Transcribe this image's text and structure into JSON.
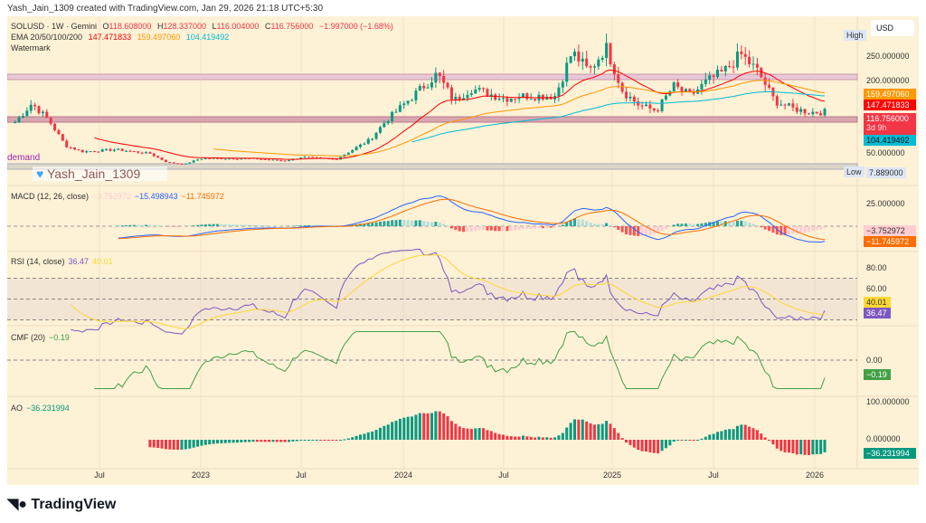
{
  "credit": "Yash_Jain_1309 created with TradingView.com, Jan 29, 2026 21:18 UTC+5:30",
  "legend": {
    "symbol": "SOLUSD · 1W · Gemini",
    "o_label": "O",
    "o": "118.608000",
    "h_label": "H",
    "h": "128.337000",
    "l_label": "L",
    "l": "116.004000",
    "c_label": "C",
    "c": "116.756000",
    "change": "−1.997000 (−1.68%)",
    "ema_label": "EMA 20/50/100/200",
    "ema20": "147.471833",
    "ema50": "159.497060",
    "ema100": "104.419492",
    "watermark": "Watermark"
  },
  "annotations": {
    "demand": "demand",
    "watermark_text": "Yash_Jain_1309"
  },
  "axis": {
    "currency": "USD",
    "high": "High",
    "low": "Low",
    "low_value": "7.889000",
    "price_ticks": [
      "250.000000",
      "200.000000",
      "50.000000"
    ],
    "price_tags": {
      "ema50": "159.497060",
      "ema20": "147.471833",
      "close": "116.756000",
      "countdown": "3d 9h",
      "ema100": "104.419492"
    }
  },
  "macd": {
    "label": "MACD (12, 26, close)",
    "hist": "−3.752972",
    "macd": "−15.498943",
    "signal": "−11.745972",
    "ticks": [
      "25.000000",
      "0.000000"
    ]
  },
  "rsi": {
    "label": "RSI (14, close)",
    "rsi": "36.47",
    "ma": "40.01",
    "ticks": [
      "80.00",
      "60.00"
    ]
  },
  "cmf": {
    "label": "CMF (20)",
    "value": "−0.19",
    "ticks": [
      "0.00"
    ]
  },
  "ao": {
    "label": "AO",
    "value": "−36.231994",
    "ticks": [
      "100.000000",
      "0.000000"
    ]
  },
  "time_axis": [
    "Jul",
    "2023",
    "Jul",
    "2024",
    "Jul",
    "2025",
    "Jul",
    "2026"
  ],
  "colors": {
    "up": "#089981",
    "down": "#f23645",
    "ema20": "#ff0000",
    "ema50": "#ff9800",
    "ema100": "#00bcd4",
    "macd": "#2962ff",
    "signal": "#ff6d00",
    "rsi": "#7e57c2",
    "rsi_ma": "#fdd835",
    "cmf": "#43a047",
    "bg": "#fdf1d6"
  },
  "chart_data": {
    "type": "candlestick",
    "interval": "1W",
    "approx_close_keypoints": [
      [
        "2022-02",
        96
      ],
      [
        "2022-03",
        135
      ],
      [
        "2022-04",
        100
      ],
      [
        "2022-05",
        48
      ],
      [
        "2022-06",
        36
      ],
      [
        "2022-08",
        40
      ],
      [
        "2022-10",
        32
      ],
      [
        "2022-11",
        14
      ],
      [
        "2022-12",
        10
      ],
      [
        "2023-01",
        22
      ],
      [
        "2023-04",
        22
      ],
      [
        "2023-06",
        17
      ],
      [
        "2023-07",
        25
      ],
      [
        "2023-09",
        20
      ],
      [
        "2023-10",
        40
      ],
      [
        "2023-11",
        60
      ],
      [
        "2023-12",
        100
      ],
      [
        "2024-03",
        195
      ],
      [
        "2024-04",
        140
      ],
      [
        "2024-05",
        165
      ],
      [
        "2024-07",
        145
      ],
      [
        "2024-08",
        150
      ],
      [
        "2024-10",
        150
      ],
      [
        "2024-11",
        240
      ],
      [
        "2024-12",
        200
      ],
      [
        "2025-01",
        250
      ],
      [
        "2025-02",
        160
      ],
      [
        "2025-03",
        130
      ],
      [
        "2025-04",
        120
      ],
      [
        "2025-05",
        170
      ],
      [
        "2025-06",
        150
      ],
      [
        "2025-07",
        180
      ],
      [
        "2025-08",
        200
      ],
      [
        "2025-09",
        235
      ],
      [
        "2025-10",
        200
      ],
      [
        "2025-11",
        140
      ],
      [
        "2025-12",
        125
      ],
      [
        "2026-01",
        117
      ]
    ]
  },
  "footer": {
    "brand": "TradingView"
  }
}
